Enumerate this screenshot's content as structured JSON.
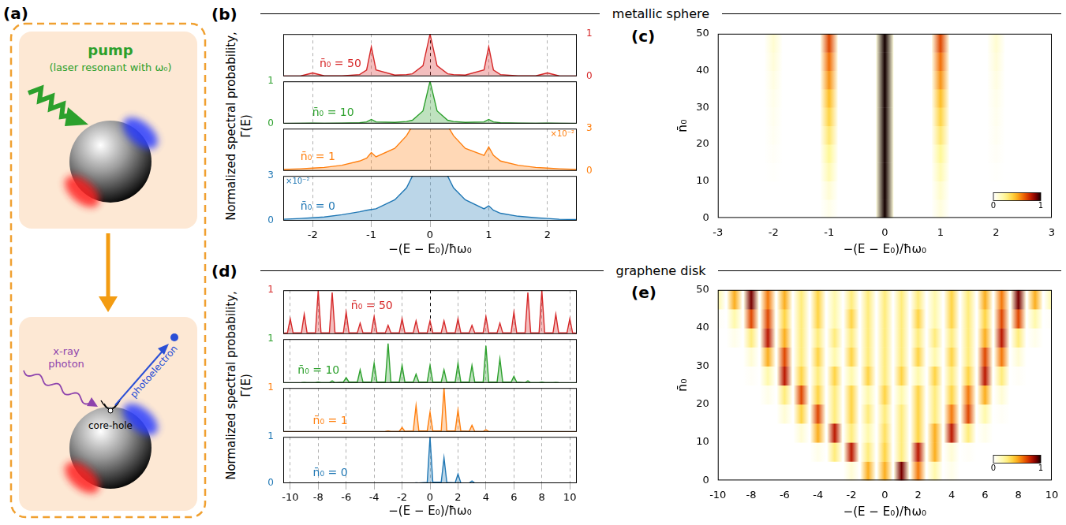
{
  "diagram": {
    "label": "(a)",
    "pump": "pump",
    "pump_note": "(laser resonant with ω₀)",
    "xray": [
      "x-ray",
      "photon"
    ],
    "photoelectron": "photoelectron",
    "core_hole": "core-hole"
  },
  "chart_data": [
    {
      "panel": "(b)",
      "type": "line",
      "title": "metallic sphere",
      "x_title": "−(E − E₀)/ħω₀",
      "y_title": "Normalized spectral probability, Γ(E)",
      "x": [
        -2.5,
        -2.2,
        -2,
        -1.8,
        -1.5,
        -1.2,
        -1.08,
        -1,
        -0.92,
        -0.6,
        -0.4,
        -0.3,
        -0.12,
        0,
        0.12,
        0.3,
        0.4,
        0.6,
        0.92,
        1,
        1.08,
        1.2,
        1.5,
        1.8,
        2,
        2.2,
        2.5
      ],
      "xlim": [
        -2.5,
        2.5
      ],
      "xticks": [
        -2,
        -1,
        0,
        1,
        2
      ],
      "grid": true,
      "series": [
        {
          "name": "n̄₀ = 50",
          "color": "#d62728",
          "ylim": [
            0,
            1
          ],
          "yticks": [
            0,
            1
          ],
          "values": [
            0.005,
            0.01,
            0.08,
            0.01,
            0.01,
            0.04,
            0.15,
            0.7,
            0.15,
            0.03,
            0.04,
            0.06,
            0.25,
            1,
            0.25,
            0.06,
            0.04,
            0.03,
            0.15,
            0.7,
            0.15,
            0.04,
            0.01,
            0.01,
            0.08,
            0.01,
            0.005
          ]
        },
        {
          "name": "n̄₀ = 10",
          "color": "#2ca02c",
          "ylim": [
            0,
            1
          ],
          "yticks": [
            0,
            1
          ],
          "values": [
            0.003,
            0.005,
            0.01,
            0.005,
            0.01,
            0.02,
            0.04,
            0.1,
            0.04,
            0.03,
            0.05,
            0.08,
            0.3,
            1,
            0.3,
            0.08,
            0.05,
            0.03,
            0.04,
            0.1,
            0.04,
            0.02,
            0.01,
            0.005,
            0.01,
            0.005,
            0.003
          ]
        },
        {
          "name": "n̄₀ = 1",
          "color": "#ff7f0e",
          "ylim": [
            0,
            0.03
          ],
          "yticks": [
            0,
            {
              "value": 0.03,
              "label": "3"
            }
          ],
          "annotation": "×10⁻²",
          "values": [
            0.001,
            0.0015,
            0.002,
            0.0025,
            0.004,
            0.007,
            0.009,
            0.013,
            0.01,
            0.016,
            0.025,
            0.032,
            0.1,
            1,
            0.1,
            0.032,
            0.025,
            0.016,
            0.011,
            0.017,
            0.011,
            0.007,
            0.004,
            0.0025,
            0.002,
            0.0015,
            0.001
          ]
        },
        {
          "name": "n̄₀ = 0",
          "color": "#1f77b4",
          "ylim": [
            0,
            0.03
          ],
          "yticks": [
            0,
            {
              "value": 0.03,
              "label": "3"
            }
          ],
          "annotation": "×10⁻²",
          "values": [
            0.001,
            0.0015,
            0.002,
            0.0025,
            0.004,
            0.006,
            0.007,
            0.0075,
            0.008,
            0.014,
            0.022,
            0.03,
            0.1,
            1,
            0.1,
            0.03,
            0.022,
            0.014,
            0.008,
            0.01,
            0.007,
            0.005,
            0.003,
            0.002,
            0.0015,
            0.001,
            0.0008
          ]
        }
      ]
    },
    {
      "panel": "(c)",
      "type": "heatmap",
      "x_title": "−(E − E₀)/ħω₀",
      "y_title": "n̄₀",
      "x": [
        -3,
        -2,
        -1,
        0,
        1,
        2,
        3
      ],
      "y": [
        2.5,
        7.5,
        12.5,
        17.5,
        22.5,
        27.5,
        32.5,
        37.5,
        42.5,
        47.5
      ],
      "xlim": [
        -3,
        3
      ],
      "xticks": [
        -3,
        -2,
        -1,
        0,
        1,
        2,
        3
      ],
      "ylim": [
        0,
        50
      ],
      "yticks": [
        0,
        10,
        20,
        30,
        40,
        50
      ],
      "grid": false,
      "values": [
        [
          0,
          0,
          0.05,
          1,
          0.08,
          0,
          0
        ],
        [
          0,
          0,
          0.1,
          1,
          0.12,
          0,
          0
        ],
        [
          0,
          0.01,
          0.18,
          1,
          0.18,
          0.01,
          0
        ],
        [
          0,
          0.02,
          0.25,
          1,
          0.25,
          0.02,
          0
        ],
        [
          0,
          0.03,
          0.32,
          1,
          0.32,
          0.03,
          0
        ],
        [
          0,
          0.04,
          0.4,
          1,
          0.4,
          0.04,
          0
        ],
        [
          0,
          0.05,
          0.47,
          1,
          0.47,
          0.05,
          0
        ],
        [
          0,
          0.07,
          0.55,
          1,
          0.55,
          0.07,
          0
        ],
        [
          0,
          0.09,
          0.62,
          1,
          0.62,
          0.09,
          0
        ],
        [
          0,
          0.11,
          0.7,
          1,
          0.7,
          0.11,
          0
        ]
      ],
      "colorbar": {
        "range": [
          0,
          1
        ],
        "ticks": [
          0,
          1
        ]
      }
    },
    {
      "panel": "(d)",
      "type": "line",
      "title": "graphene disk",
      "x_title": "−(E − E₀)/ħω₀",
      "y_title": "Normalized spectral probability, Γ(E)",
      "x": [
        -10.5,
        -10.2,
        -10,
        -9.8,
        -9.2,
        -9,
        -8.8,
        -8.2,
        -8,
        -7.8,
        -7.2,
        -7,
        -6.8,
        -6.2,
        -6,
        -5.8,
        -5.2,
        -5,
        -4.8,
        -4.2,
        -4,
        -3.8,
        -3.2,
        -3,
        -2.8,
        -2.2,
        -2,
        -1.8,
        -1.2,
        -1,
        -0.8,
        -0.2,
        0,
        0.2,
        0.8,
        1,
        1.2,
        1.8,
        2,
        2.2,
        2.8,
        3,
        3.2,
        3.8,
        4,
        4.2,
        4.8,
        5,
        5.2,
        5.8,
        6,
        6.2,
        6.8,
        7,
        7.2,
        7.8,
        8,
        8.2,
        8.8,
        9,
        9.2,
        9.8,
        10,
        10.2,
        10.5
      ],
      "xlim": [
        -10.5,
        10.5
      ],
      "xticks": [
        -10,
        -8,
        -6,
        -4,
        -2,
        0,
        2,
        4,
        6,
        8,
        10
      ],
      "grid": true,
      "series": [
        {
          "name": "n̄₀ = 50",
          "color": "#d62728",
          "ylim": [
            0,
            1
          ],
          "yticks": [
            1
          ],
          "values": [
            0.02,
            0.03,
            0.35,
            0.03,
            0.03,
            0.45,
            0.03,
            0.03,
            1,
            0.03,
            0.03,
            0.95,
            0.03,
            0.03,
            0.5,
            0.03,
            0.03,
            0.25,
            0.03,
            0.03,
            0.4,
            0.03,
            0.03,
            0.2,
            0.03,
            0.03,
            0.35,
            0.03,
            0.03,
            0.3,
            0.03,
            0.03,
            0.3,
            0.03,
            0.03,
            0.3,
            0.03,
            0.03,
            0.35,
            0.03,
            0.03,
            0.2,
            0.03,
            0.03,
            0.4,
            0.03,
            0.03,
            0.25,
            0.03,
            0.03,
            0.5,
            0.03,
            0.03,
            0.95,
            0.03,
            0.03,
            1,
            0.03,
            0.03,
            0.45,
            0.03,
            0.03,
            0.35,
            0.03,
            0.02
          ]
        },
        {
          "name": "n̄₀ = 10",
          "color": "#2ca02c",
          "ylim": [
            0,
            1
          ],
          "yticks": [
            1
          ],
          "values": [
            0,
            0,
            0,
            0,
            0.005,
            0.01,
            0.005,
            0.005,
            0.02,
            0.005,
            0.005,
            0.05,
            0.005,
            0.02,
            0.12,
            0.02,
            0.02,
            0.3,
            0.02,
            0.02,
            0.45,
            0.02,
            0.02,
            0.9,
            0.02,
            0.02,
            0.4,
            0.02,
            0.02,
            0.2,
            0.02,
            0.02,
            0.4,
            0.02,
            0.02,
            0.3,
            0.02,
            0.02,
            0.45,
            0.02,
            0.02,
            0.4,
            0.02,
            0.02,
            0.85,
            0.02,
            0.02,
            0.55,
            0.02,
            0.02,
            0.15,
            0.02,
            0.005,
            0.05,
            0.005,
            0.005,
            0.02,
            0.005,
            0.005,
            0.01,
            0.005,
            0,
            0,
            0,
            0
          ]
        },
        {
          "name": "n̄₀ = 1",
          "color": "#ff7f0e",
          "ylim": [
            0,
            1
          ],
          "yticks": [
            1
          ],
          "values": [
            0,
            0,
            0,
            0,
            0,
            0,
            0,
            0,
            0,
            0,
            0,
            0,
            0,
            0,
            0,
            0,
            0,
            0,
            0,
            0,
            0,
            0,
            0.005,
            0.02,
            0.005,
            0.01,
            0.1,
            0.01,
            0.02,
            0.6,
            0.02,
            0.02,
            0.45,
            0.02,
            0.02,
            1,
            0.02,
            0.02,
            0.5,
            0.02,
            0.01,
            0.15,
            0.01,
            0.005,
            0.05,
            0.005,
            0,
            0,
            0,
            0,
            0,
            0,
            0,
            0,
            0,
            0,
            0,
            0,
            0,
            0,
            0,
            0,
            0,
            0,
            0
          ]
        },
        {
          "name": "n̄₀ = 0",
          "color": "#1f77b4",
          "ylim": [
            0,
            1
          ],
          "yticks": [
            0,
            1
          ],
          "values": [
            0,
            0,
            0,
            0,
            0,
            0,
            0,
            0,
            0,
            0,
            0,
            0,
            0,
            0,
            0,
            0,
            0,
            0,
            0,
            0,
            0,
            0,
            0,
            0,
            0,
            0,
            0,
            0,
            0,
            0.01,
            0.005,
            0.02,
            1,
            0.02,
            0.02,
            0.55,
            0.02,
            0.01,
            0.2,
            0.01,
            0.005,
            0.05,
            0.005,
            0,
            0,
            0,
            0,
            0,
            0,
            0,
            0,
            0,
            0,
            0,
            0,
            0,
            0,
            0,
            0,
            0,
            0,
            0,
            0,
            0,
            0
          ]
        }
      ]
    },
    {
      "panel": "(e)",
      "type": "heatmap",
      "x_title": "−(E − E₀)/ħω₀",
      "y_title": "n̄₀",
      "x": [
        -10,
        -9,
        -8,
        -7,
        -6,
        -5,
        -4,
        -3,
        -2,
        -1,
        0,
        1,
        2,
        3,
        4,
        5,
        6,
        7,
        8,
        9,
        10
      ],
      "y": [
        2.5,
        7.5,
        12.5,
        17.5,
        22.5,
        27.5,
        32.5,
        37.5,
        42.5,
        47.5
      ],
      "xlim": [
        -10,
        10
      ],
      "xticks": [
        -10,
        -8,
        -6,
        -4,
        -2,
        0,
        2,
        4,
        6,
        8,
        10
      ],
      "ylim": [
        0,
        50
      ],
      "yticks": [
        0,
        10,
        20,
        30,
        40,
        50
      ],
      "grid": false,
      "values": [
        [
          0,
          0,
          0,
          0,
          0,
          0,
          0,
          0,
          0.1,
          0.5,
          0.5,
          0.9,
          0.6,
          0.2,
          0.05,
          0,
          0,
          0,
          0,
          0,
          0
        ],
        [
          0,
          0,
          0,
          0,
          0,
          0,
          0.05,
          0.3,
          0.8,
          0.3,
          0.4,
          0.3,
          0.8,
          0.5,
          0.1,
          0.02,
          0,
          0,
          0,
          0,
          0
        ],
        [
          0,
          0,
          0,
          0,
          0,
          0.1,
          0.5,
          0.8,
          0.3,
          0.2,
          0.35,
          0.3,
          0.4,
          0.5,
          0.8,
          0.3,
          0.05,
          0,
          0,
          0,
          0
        ],
        [
          0,
          0,
          0,
          0,
          0.1,
          0.4,
          0.7,
          0.3,
          0.4,
          0.3,
          0.3,
          0.3,
          0.4,
          0.3,
          0.6,
          0.7,
          0.2,
          0.02,
          0,
          0,
          0
        ],
        [
          0,
          0,
          0,
          0.05,
          0.3,
          0.7,
          0.4,
          0.3,
          0.4,
          0.2,
          0.4,
          0.2,
          0.4,
          0.3,
          0.4,
          0.6,
          0.5,
          0.1,
          0,
          0,
          0
        ],
        [
          0,
          0,
          0.02,
          0.2,
          0.8,
          0.4,
          0.3,
          0.4,
          0.2,
          0.4,
          0.3,
          0.4,
          0.2,
          0.4,
          0.3,
          0.4,
          0.8,
          0.3,
          0.02,
          0,
          0
        ],
        [
          0,
          0,
          0.1,
          0.5,
          0.7,
          0.3,
          0.4,
          0.2,
          0.4,
          0.3,
          0.3,
          0.3,
          0.4,
          0.2,
          0.4,
          0.3,
          0.7,
          0.6,
          0.1,
          0,
          0
        ],
        [
          0,
          0.05,
          0.3,
          0.8,
          0.5,
          0.3,
          0.3,
          0.3,
          0.3,
          0.3,
          0.3,
          0.3,
          0.3,
          0.3,
          0.3,
          0.3,
          0.5,
          0.8,
          0.3,
          0.05,
          0
        ],
        [
          0.02,
          0.2,
          0.7,
          0.7,
          0.4,
          0.3,
          0.4,
          0.2,
          0.4,
          0.3,
          0.3,
          0.3,
          0.4,
          0.2,
          0.4,
          0.3,
          0.4,
          0.7,
          0.7,
          0.2,
          0.02
        ],
        [
          0.2,
          0.5,
          0.9,
          0.6,
          0.5,
          0.3,
          0.4,
          0.2,
          0.3,
          0.3,
          0.3,
          0.3,
          0.3,
          0.2,
          0.4,
          0.3,
          0.5,
          0.6,
          0.9,
          0.5,
          0.2
        ]
      ],
      "colorbar": {
        "range": [
          0,
          1
        ],
        "ticks": [
          0,
          1
        ]
      }
    }
  ]
}
